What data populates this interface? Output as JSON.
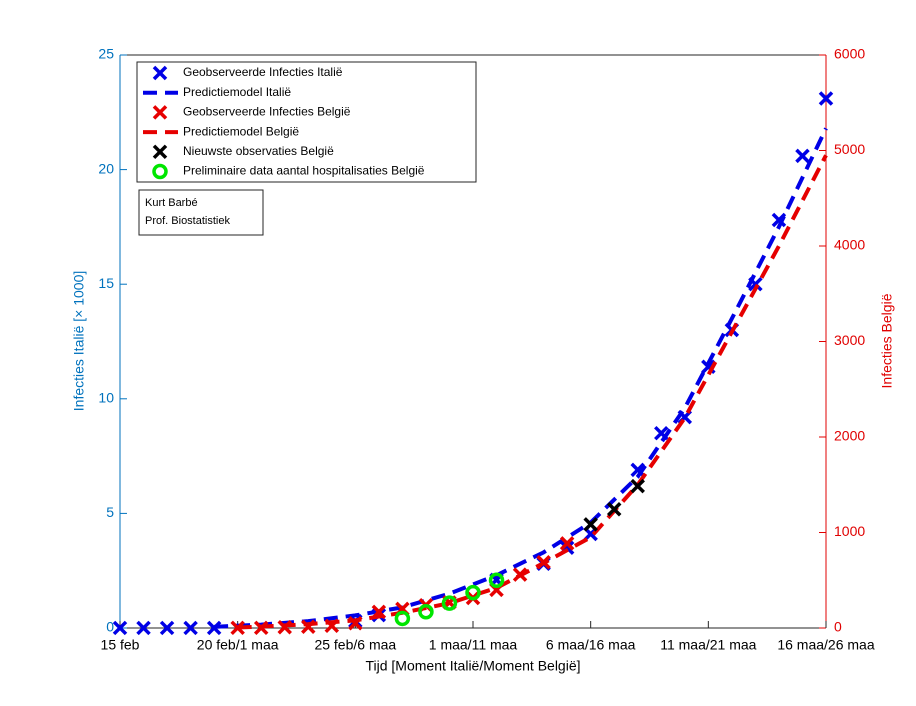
{
  "chart_data": {
    "type": "line",
    "xlabel": "Tijd [Moment Italië/Moment België]",
    "ylabel": "Infecties Italië [× 1000]",
    "y2label": "Infecties België",
    "annotations": [
      "Kurt Barbé",
      "Prof. Biostatistiek"
    ],
    "xlim": [
      0,
      30
    ],
    "xticks": [
      {
        "value": 0,
        "label": "15 feb"
      },
      {
        "value": 5,
        "label": "20 feb/1 maa"
      },
      {
        "value": 10,
        "label": "25 feb/6 maa"
      },
      {
        "value": 15,
        "label": "1 maa/11 maa"
      },
      {
        "value": 20,
        "label": "6 maa/16 maa"
      },
      {
        "value": 25,
        "label": "11 maa/21 maa"
      },
      {
        "value": 30,
        "label": "16 maa/26 maa"
      }
    ],
    "ylim": [
      0,
      25
    ],
    "yticks": [
      0,
      5,
      10,
      15,
      20,
      25
    ],
    "ycolor": "#0072bd",
    "y2lim": [
      0,
      6000
    ],
    "y2ticks": [
      0,
      1000,
      2000,
      3000,
      4000,
      5000,
      6000
    ],
    "y2color": "#e00000",
    "series": [
      {
        "name": "Geobserveerde Infecties Italië",
        "color": "#0000e6",
        "style": "cross",
        "axis": "y",
        "x": [
          0,
          1,
          2,
          3,
          4,
          10,
          11,
          16,
          18,
          19,
          20,
          22,
          23,
          24,
          25,
          26,
          27,
          28,
          29,
          30
        ],
        "values": [
          0.003,
          0.003,
          0.003,
          0.003,
          0.003,
          0.3,
          0.56,
          2.1,
          2.8,
          3.5,
          4.1,
          6.9,
          8.5,
          9.2,
          11.4,
          13.0,
          15.0,
          17.8,
          20.6,
          23.1
        ]
      },
      {
        "name": "Predictiemodel Italië",
        "color": "#0000e6",
        "style": "dash",
        "axis": "y",
        "x": [
          4,
          6,
          8,
          10,
          12,
          14,
          16,
          18,
          20,
          22,
          24,
          26,
          28,
          30
        ],
        "values": [
          0.05,
          0.15,
          0.3,
          0.55,
          0.9,
          1.5,
          2.3,
          3.3,
          4.6,
          6.6,
          9.6,
          13.5,
          17.5,
          21.8
        ]
      },
      {
        "name": "Geobserveerde Infecties België",
        "color": "#e60000",
        "style": "cross",
        "axis": "y2",
        "x": [
          5,
          6,
          7,
          8,
          9,
          10,
          11,
          12,
          13,
          14,
          15,
          16,
          17,
          18,
          19
        ],
        "values": [
          2,
          2,
          8,
          13,
          23,
          50,
          169,
          200,
          239,
          267,
          314,
          399,
          559,
          689,
          886
        ]
      },
      {
        "name": "Predictiemodel België",
        "color": "#e60000",
        "style": "dash",
        "axis": "y2",
        "x": [
          5,
          6,
          8,
          10,
          12,
          14,
          16,
          18,
          20,
          22,
          24,
          26,
          28,
          30
        ],
        "values": [
          5,
          15,
          40,
          80,
          160,
          260,
          420,
          680,
          950,
          1500,
          2200,
          3100,
          4000,
          4950
        ]
      },
      {
        "name": "Nieuwste observaties België",
        "color": "#000000",
        "style": "cross",
        "axis": "y2",
        "x": [
          20,
          21,
          22
        ],
        "values": [
          1085,
          1243,
          1486
        ]
      },
      {
        "name": "Preliminaire data aantal hospitalisaties België",
        "color": "#00e600",
        "style": "circle",
        "axis": "y2",
        "x": [
          12,
          13,
          14,
          15,
          16
        ],
        "values": [
          100,
          170,
          260,
          370,
          500
        ]
      }
    ]
  }
}
